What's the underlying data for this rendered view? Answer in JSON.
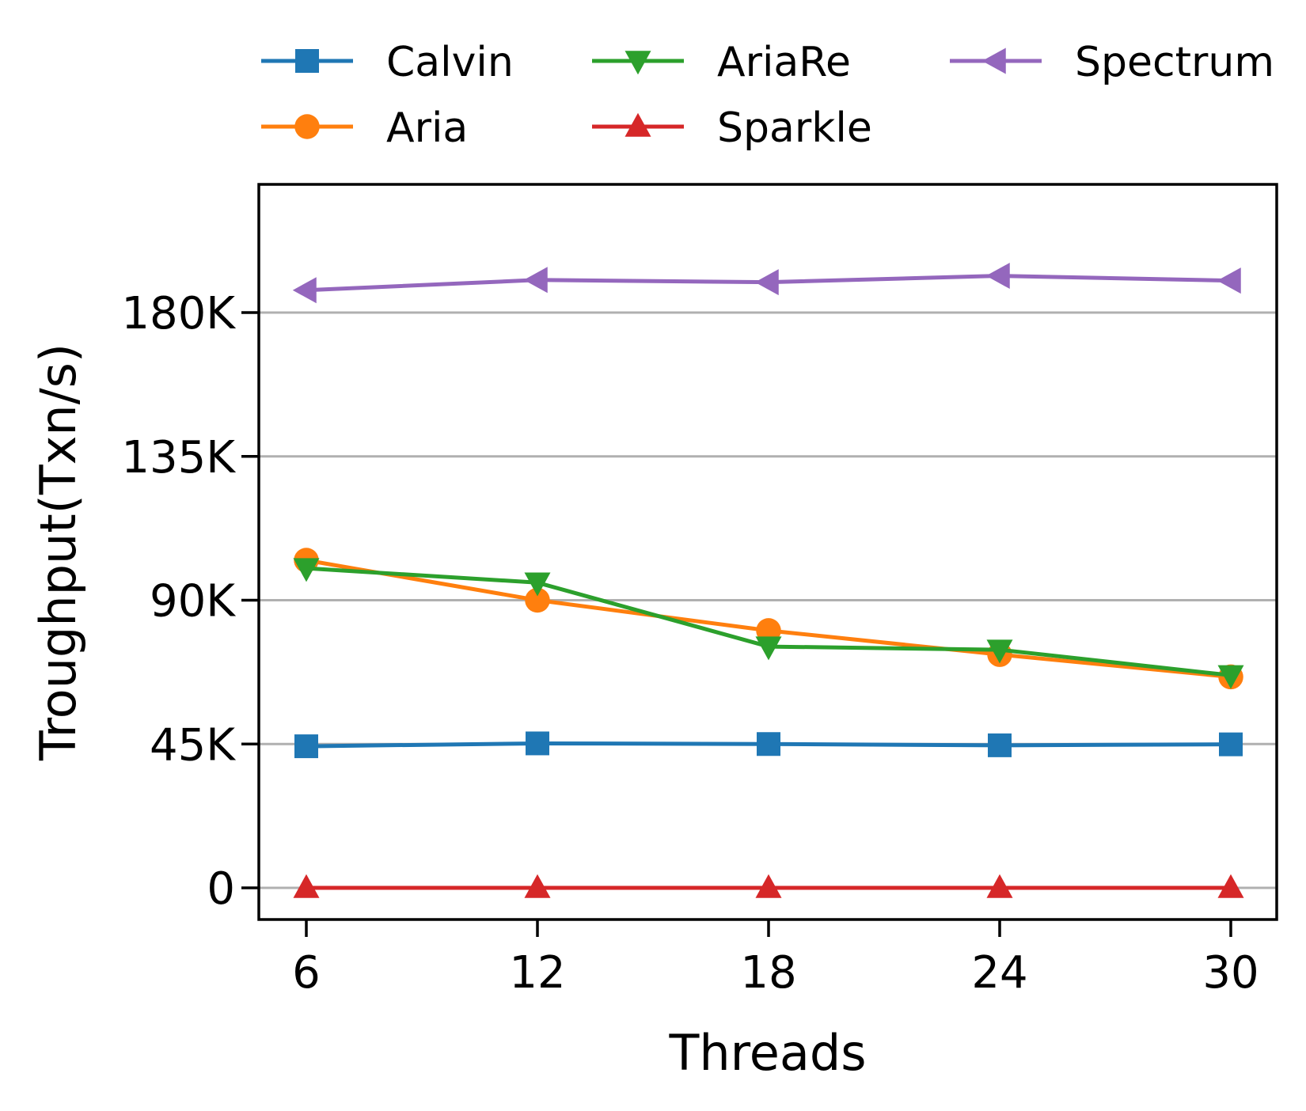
{
  "chart_data": {
    "type": "line",
    "title": "",
    "xlabel": "Threads",
    "ylabel": "Troughput(Txn/s)",
    "x": [
      6,
      12,
      18,
      24,
      30
    ],
    "x_tick_labels": [
      "6",
      "12",
      "18",
      "24",
      "30"
    ],
    "y_ticks": [
      0,
      45000,
      90000,
      135000,
      180000
    ],
    "y_tick_labels": [
      "0",
      "45K",
      "90K",
      "135K",
      "180K"
    ],
    "ylim": [
      -9500,
      220000
    ],
    "grid": "horizontal",
    "legend_position": "top",
    "series": [
      {
        "name": "Calvin",
        "color": "#1f77b4",
        "marker": "square",
        "values": [
          44300,
          45200,
          45000,
          44600,
          44900
        ]
      },
      {
        "name": "Aria",
        "color": "#ff7f0e",
        "marker": "circle",
        "values": [
          102500,
          90000,
          80500,
          73000,
          66000
        ]
      },
      {
        "name": "AriaRe",
        "color": "#2ca02c",
        "marker": "triangle-down",
        "values": [
          100000,
          95500,
          75500,
          74500,
          66500
        ]
      },
      {
        "name": "Sparkle",
        "color": "#d62728",
        "marker": "triangle-up",
        "values": [
          0,
          0,
          0,
          0,
          0
        ]
      },
      {
        "name": "Spectrum",
        "color": "#9467bd",
        "marker": "triangle-left",
        "values": [
          187000,
          190200,
          189500,
          191500,
          190000
        ]
      }
    ]
  }
}
